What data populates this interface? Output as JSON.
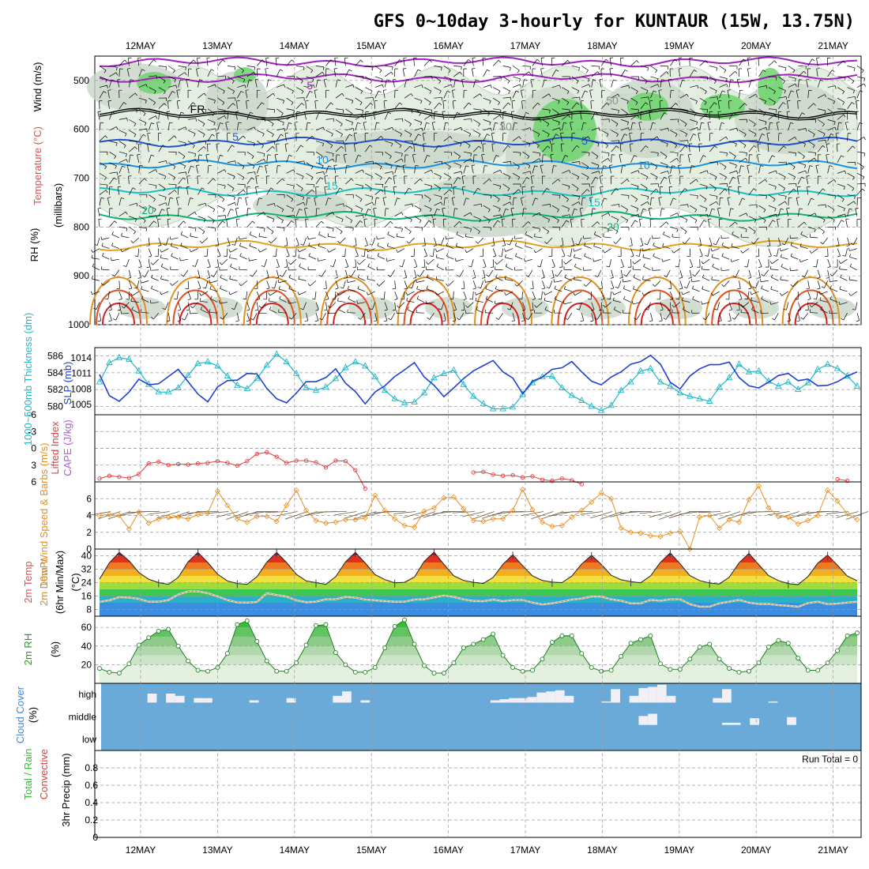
{
  "title": "GFS 0~10day 3-hourly for KUNTAUR (15W, 13.75N)",
  "dates": [
    "12MAY",
    "13MAY",
    "14MAY",
    "15MAY",
    "16MAY",
    "17MAY",
    "18MAY",
    "19MAY",
    "20MAY",
    "21MAY"
  ],
  "chart_data": [
    {
      "id": "upper",
      "type": "contour",
      "ylabels": [
        {
          "text": "Wind (m/s)",
          "color": "#000000"
        },
        {
          "text": "Temperature (°C)",
          "color": "#e05050"
        },
        {
          "text": "(millibars)",
          "color": "#000000"
        },
        {
          "text": "RH (%)",
          "color": "#000000"
        }
      ],
      "ylim": [
        1000,
        450
      ],
      "yticks": [
        500,
        600,
        700,
        800,
        900,
        1000
      ],
      "isotherm_labels": [
        {
          "text": "-5",
          "color": "#a020c0"
        },
        {
          "text": "FR",
          "color": "#000000"
        },
        {
          "text": "5",
          "color": "#2050d0"
        },
        {
          "text": "10",
          "color": "#1890e0"
        },
        {
          "text": "15",
          "color": "#18c0c0"
        },
        {
          "text": "20",
          "color": "#10b070"
        },
        {
          "text": "30",
          "color": "#909090"
        },
        {
          "text": "50",
          "color": "#909090"
        }
      ]
    },
    {
      "id": "slp",
      "type": "line",
      "ylabel_left": "1000~500mb Thickness (dm)",
      "ylabel_right": "SLP (mb)",
      "left_ticks": [
        580,
        582,
        584,
        586
      ],
      "right_ticks": [
        1005,
        1008,
        1011,
        1014
      ],
      "series": [
        {
          "name": "1000~500mb Thickness (dm)",
          "color": "#20b8c8",
          "values": [
            582.9,
            585.2,
            585.8,
            585.6,
            584.2,
            582.6,
            581.7,
            581.7,
            582.2,
            583.7,
            585.1,
            585.3,
            584.8,
            583.6,
            582.5,
            582.1,
            583.3,
            584.9,
            586.2,
            585.3,
            583.9,
            582.2,
            581.9,
            582.3,
            583.3,
            584.6,
            585.3,
            584.8,
            583.5,
            581.9,
            580.9,
            580.4,
            580.5,
            581.6,
            583.4,
            583.9,
            584.3,
            582.6,
            581.2,
            580.3,
            579.7,
            579.7,
            579.9,
            581.4,
            582.8,
            583.5,
            583.6,
            582.2,
            581.3,
            580.7,
            580.0,
            579.5,
            580.1,
            581.9,
            582.9,
            584.2,
            584.5,
            582.9,
            582.4,
            581.6,
            581.2,
            580.9,
            580.6,
            582.3,
            583.4,
            585.0,
            584.1,
            584.2,
            583.0,
            582.4,
            582.9,
            582.0,
            582.8,
            584.4,
            585.0,
            584.5,
            583.6,
            582.4
          ]
        },
        {
          "name": "SLP (mb)",
          "color": "#2040d0",
          "values": [
            1010.8,
            1006.7,
            1005.6,
            1007.4,
            1009.9,
            1008.8,
            1009.0,
            1010.4,
            1011.8,
            1009.4,
            1007.0,
            1005.5,
            1008.4,
            1009.6,
            1009.7,
            1011.0,
            1010.9,
            1008.1,
            1006.1,
            1005.3,
            1007.2,
            1009.4,
            1009.4,
            1010.2,
            1011.9,
            1009.1,
            1007.5,
            1005.1,
            1007.4,
            1008.6,
            1010.4,
            1011.7,
            1013.1,
            1010.3,
            1008.7,
            1006.5,
            1008.2,
            1010.0,
            1011.5,
            1012.5,
            1013.5,
            1011.3,
            1010.1,
            1007.1,
            1009.5,
            1010.3,
            1011.8,
            1012.1,
            1013.3,
            1011.3,
            1009.5,
            1008.8,
            1010.3,
            1011.3,
            1012.8,
            1013.3,
            1014.5,
            1012.8,
            1009.3,
            1008.0,
            1010.5,
            1011.9,
            1012.7,
            1012.7,
            1013.2,
            1010.2,
            1008.6,
            1008.2,
            1009.3,
            1010.6,
            1011.0,
            1009.6,
            1009.9,
            1008.6,
            1008.7,
            1009.4,
            1010.5,
            1011.3
          ]
        }
      ]
    },
    {
      "id": "cape",
      "type": "line",
      "ylabel_left": "Lifted Index",
      "ylabel_right": "CAPE (J/kg)",
      "yticks": [
        -6,
        -3,
        0,
        3,
        6
      ],
      "series": [
        {
          "name": "Lifted Index",
          "color": "#e04040",
          "values": [
            5.4,
            4.9,
            5.1,
            5.3,
            4.6,
            2.7,
            2.4,
            3.0,
            2.8,
            2.9,
            2.7,
            2.6,
            2.3,
            2.6,
            3.1,
            2.3,
            1.0,
            0.7,
            1.5,
            2.6,
            2.2,
            2.2,
            2.5,
            3.4,
            2.2,
            2.3,
            3.9,
            7.2,
            null,
            null,
            null,
            null,
            null,
            null,
            null,
            null,
            null,
            null,
            4.3,
            4.2,
            4.7,
            4.9,
            4.8,
            5.2,
            5.0,
            5.6,
            5.8,
            5.4,
            5.7,
            6.4,
            null,
            null,
            null,
            null,
            null,
            null,
            null,
            null,
            null,
            null,
            null,
            null,
            null,
            null,
            null,
            null,
            null,
            null,
            null,
            null,
            null,
            null,
            null,
            null,
            null,
            5.5,
            5.8,
            null
          ]
        }
      ]
    },
    {
      "id": "wind",
      "type": "line",
      "ylabel": "10m Wind Speed & Barbs (m/s)",
      "yticks": [
        0,
        2,
        4,
        6
      ],
      "series": [
        {
          "name": "10m Wind Speed",
          "color": "#e89020",
          "values": [
            4.0,
            4.1,
            4.0,
            2.4,
            4.4,
            3.1,
            3.6,
            3.8,
            3.8,
            3.6,
            4.1,
            4.3,
            6.9,
            5.2,
            3.6,
            3.2,
            3.9,
            3.9,
            3.3,
            5.2,
            7.0,
            4.6,
            3.4,
            3.1,
            3.2,
            3.5,
            3.5,
            3.7,
            6.4,
            4.6,
            3.6,
            2.8,
            2.6,
            4.5,
            4.9,
            6.1,
            6.2,
            4.8,
            3.4,
            3.3,
            3.6,
            3.6,
            4.6,
            7.1,
            4.7,
            3.2,
            2.7,
            2.8,
            3.8,
            4.6,
            5.6,
            6.7,
            6.0,
            2.5,
            2.0,
            1.9,
            1.6,
            1.5,
            1.9,
            2.1,
            0.0,
            3.8,
            4.0,
            2.5,
            3.5,
            3.2,
            5.9,
            7.5,
            4.9,
            3.9,
            3.8,
            3.0,
            3.4,
            4.0,
            7.0,
            5.7,
            4.2,
            3.5
          ]
        }
      ]
    },
    {
      "id": "temp",
      "type": "area",
      "ylabel_lines": [
        "2m Temp",
        "2m DewPt",
        "(6hr Min/Max)"
      ],
      "ylabel_colors": [
        "#e05050",
        "#d09030",
        "#000000"
      ],
      "yunit": "(°C)",
      "yticks": [
        8,
        16,
        24,
        32,
        40
      ],
      "ylim": [
        4,
        44
      ],
      "bands": [
        {
          "lo": 0,
          "hi": 12,
          "color": "#3c8ce0"
        },
        {
          "lo": 12,
          "hi": 16,
          "color": "#2ab0c8"
        },
        {
          "lo": 16,
          "hi": 20,
          "color": "#3cc850"
        },
        {
          "lo": 20,
          "hi": 24,
          "color": "#a0dc40"
        },
        {
          "lo": 24,
          "hi": 28,
          "color": "#f0e040"
        },
        {
          "lo": 28,
          "hi": 32,
          "color": "#f0b020"
        },
        {
          "lo": 32,
          "hi": 36,
          "color": "#f07820"
        },
        {
          "lo": 36,
          "hi": 40,
          "color": "#e03020"
        },
        {
          "lo": 40,
          "hi": 44,
          "color": "#a01818"
        }
      ],
      "series": [
        {
          "name": "2m Temp",
          "color": "#202020",
          "values": [
            26.1,
            35.8,
            42.0,
            37.0,
            30.0,
            26.0,
            24.0,
            23.0,
            27.1,
            36.4,
            42.0,
            36.0,
            29.0,
            25.0,
            23.5,
            23.0,
            27.5,
            36.2,
            42.0,
            36.0,
            29.0,
            25.0,
            24.0,
            23.0,
            27.5,
            36.4,
            42.0,
            35.7,
            28.8,
            25.8,
            23.9,
            24.2,
            27.3,
            36.7,
            42.2,
            34.9,
            28.1,
            25.3,
            24.2,
            23.5,
            27.1,
            34.9,
            40.6,
            34.1,
            28.0,
            25.3,
            24.3,
            24.0,
            27.9,
            35.1,
            40.3,
            34.9,
            28.4,
            25.7,
            24.6,
            23.9,
            28.0,
            36.0,
            41.7,
            35.2,
            28.2,
            25.2,
            23.8,
            23.2,
            27.2,
            35.8,
            41.4,
            34.7,
            28.2,
            25.2,
            23.4,
            22.8,
            27.6,
            35.6,
            40.4,
            34.3,
            27.9,
            25.1
          ]
        },
        {
          "name": "2m DewPt",
          "color": "#d09030",
          "values": [
            12.5,
            13.5,
            15.3,
            15.1,
            14.3,
            12.6,
            12.6,
            13.6,
            16.9,
            18.8,
            18.8,
            17.7,
            15.8,
            13.6,
            12.2,
            12.1,
            12.5,
            17.7,
            16.6,
            15.7,
            13.5,
            12.3,
            12.6,
            14.1,
            14.1,
            15.5,
            15.1,
            13.9,
            13.5,
            13.0,
            12.6,
            12.6,
            13.9,
            14.1,
            15.2,
            16.3,
            15.5,
            14.0,
            13.1,
            12.9,
            13.9,
            12.9,
            13.6,
            13.6,
            12.1,
            11.0,
            11.7,
            12.7,
            13.9,
            14.5,
            15.8,
            15.7,
            14.0,
            13.2,
            11.6,
            11.6,
            13.7,
            13.2,
            14.1,
            14.1,
            11.2,
            9.7,
            9.7,
            11.7,
            12.6,
            13.7,
            12.1,
            11.3,
            11.3,
            10.6,
            10.2,
            9.6,
            11.8,
            12.6,
            11.2,
            11.5,
            12.1,
            12.6
          ]
        }
      ]
    },
    {
      "id": "rh",
      "type": "area",
      "ylabel": "2m RH",
      "yunit": "(%)",
      "yticks": [
        20,
        40,
        60
      ],
      "ylim": [
        0,
        72
      ],
      "series": [
        {
          "name": "2m RH",
          "color": "#208020",
          "values": [
            16,
            12,
            11,
            21,
            41,
            49,
            56,
            58,
            40,
            24,
            14,
            13,
            17,
            32,
            63,
            67,
            45,
            24,
            13,
            13,
            22,
            41,
            62,
            63,
            33,
            20,
            12,
            12,
            17,
            38,
            61,
            68,
            42,
            19,
            11,
            11,
            22,
            38,
            42,
            47,
            53,
            30,
            17,
            13,
            14,
            26,
            44,
            51,
            51,
            32,
            17,
            13,
            14,
            29,
            43,
            47,
            51,
            21,
            15,
            15,
            26,
            39,
            42,
            26,
            16,
            12,
            13,
            22,
            39,
            46,
            43,
            27,
            14,
            14,
            22,
            35,
            51,
            54
          ]
        }
      ]
    },
    {
      "id": "cloud",
      "type": "heatmap",
      "ylabel": "Cloud Cover",
      "yunit": "(%)",
      "row_labels": [
        "high",
        "middle",
        "low"
      ],
      "background": "#6aaad8",
      "cloud_color": "#f2f0f6",
      "high": [
        0,
        0,
        0,
        0,
        0,
        40,
        0,
        40,
        30,
        0,
        20,
        20,
        0,
        0,
        0,
        0,
        10,
        0,
        0,
        0,
        20,
        0,
        0,
        0,
        0,
        30,
        50,
        0,
        10,
        0,
        0,
        0,
        0,
        0,
        0,
        0,
        0,
        0,
        0,
        0,
        0,
        0,
        10,
        15,
        20,
        20,
        25,
        45,
        50,
        55,
        30,
        0,
        0,
        0,
        5,
        60,
        0,
        30,
        65,
        70,
        80,
        30,
        0,
        0,
        0,
        0,
        20,
        60,
        0,
        0,
        0,
        0,
        5,
        0,
        0,
        0,
        0,
        0,
        0,
        0,
        0,
        0
      ],
      "middle": [
        0,
        0,
        0,
        0,
        0,
        0,
        0,
        0,
        0,
        0,
        0,
        0,
        0,
        0,
        0,
        0,
        0,
        0,
        0,
        0,
        0,
        0,
        0,
        0,
        0,
        0,
        0,
        0,
        0,
        0,
        0,
        0,
        0,
        0,
        0,
        0,
        0,
        0,
        0,
        0,
        0,
        0,
        0,
        0,
        0,
        0,
        0,
        0,
        0,
        0,
        0,
        0,
        0,
        0,
        0,
        0,
        0,
        0,
        40,
        50,
        0,
        0,
        0,
        0,
        0,
        0,
        0,
        10,
        10,
        0,
        30,
        0,
        0,
        0,
        35,
        0,
        0,
        0,
        0,
        0,
        0,
        0
      ]
    },
    {
      "id": "precip",
      "type": "bar",
      "ylabel_left": "Total / Rain",
      "ylabel_left2": "Convective",
      "ylabel": "3hr Precip (mm)",
      "yticks": [
        0,
        0.2,
        0.4,
        0.6,
        0.8
      ],
      "ylim": [
        0,
        1
      ],
      "run_total": "Run Total = 0",
      "values": []
    }
  ]
}
